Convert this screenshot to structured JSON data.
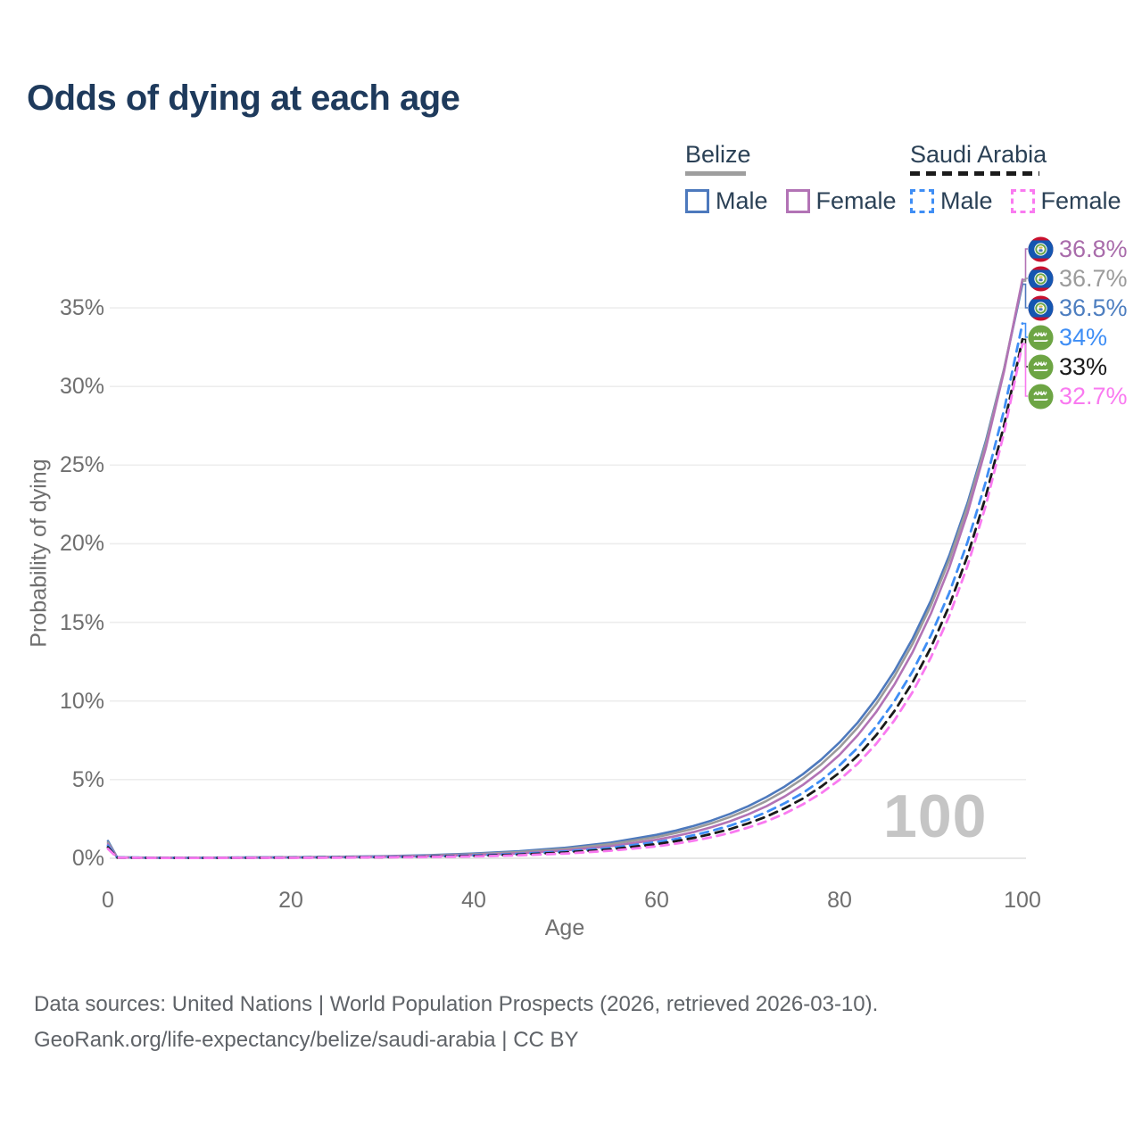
{
  "title": "Odds of dying at each age",
  "legend": {
    "groups": [
      {
        "name": "Belize",
        "line_style": "solid",
        "items": [
          {
            "label": "Male",
            "color": "#4d79bd"
          },
          {
            "label": "Female",
            "color": "#b273b5"
          }
        ]
      },
      {
        "name": "Saudi Arabia",
        "line_style": "dashed",
        "items": [
          {
            "label": "Male",
            "color": "#3f8ef5"
          },
          {
            "label": "Female",
            "color": "#f97af0"
          }
        ]
      }
    ]
  },
  "watermark": "100",
  "footer": {
    "line1": "Data sources: United Nations | World Population Prospects (2026, retrieved 2026-03-10).",
    "line2": "GeoRank.org/life-expectancy/belize/saudi-arabia | CC BY"
  },
  "chart_data": {
    "type": "line",
    "title": "Odds of dying at each age",
    "xlabel": "Age",
    "ylabel": "Probability of dying",
    "xlim": [
      0,
      100
    ],
    "ylim": [
      0,
      38
    ],
    "grid": "horizontal",
    "xticks": [
      {
        "v": 0,
        "label": "0"
      },
      {
        "v": 20,
        "label": "20"
      },
      {
        "v": 40,
        "label": "40"
      },
      {
        "v": 60,
        "label": "60"
      },
      {
        "v": 80,
        "label": "80"
      },
      {
        "v": 100,
        "label": "100"
      }
    ],
    "yticks": [
      {
        "v": 0,
        "label": "0%"
      },
      {
        "v": 5,
        "label": "5%"
      },
      {
        "v": 10,
        "label": "10%"
      },
      {
        "v": 15,
        "label": "15%"
      },
      {
        "v": 20,
        "label": "20%"
      },
      {
        "v": 25,
        "label": "25%"
      },
      {
        "v": 30,
        "label": "30%"
      },
      {
        "v": 35,
        "label": "35%"
      }
    ],
    "x": [
      0,
      1,
      5,
      10,
      15,
      20,
      25,
      30,
      35,
      40,
      45,
      50,
      55,
      60,
      62,
      64,
      66,
      68,
      70,
      72,
      74,
      76,
      78,
      80,
      82,
      84,
      86,
      88,
      90,
      92,
      94,
      96,
      98,
      100
    ],
    "series": [
      {
        "name": "Belize Male",
        "country": "Belize",
        "sex": "Male",
        "dash": "solid",
        "color": "#4d79bd",
        "values": [
          1.1,
          0.06,
          0.04,
          0.04,
          0.05,
          0.07,
          0.09,
          0.13,
          0.2,
          0.3,
          0.45,
          0.67,
          1.0,
          1.49,
          1.75,
          2.05,
          2.4,
          2.82,
          3.31,
          3.89,
          4.56,
          5.35,
          6.28,
          7.37,
          8.64,
          10.15,
          11.91,
          13.98,
          16.4,
          19.26,
          22.6,
          26.53,
          31.13,
          36.5
        ]
      },
      {
        "name": "Belize Both sexes",
        "country": "Belize",
        "sex": "Both",
        "dash": "solid",
        "color": "#9b9b9b",
        "values": [
          1.0,
          0.05,
          0.03,
          0.03,
          0.04,
          0.06,
          0.08,
          0.11,
          0.17,
          0.26,
          0.39,
          0.59,
          0.9,
          1.35,
          1.6,
          1.88,
          2.22,
          2.62,
          3.09,
          3.64,
          4.3,
          5.07,
          5.98,
          7.05,
          8.33,
          9.81,
          11.57,
          13.65,
          16.09,
          18.97,
          22.37,
          26.38,
          31.12,
          36.7
        ]
      },
      {
        "name": "Belize Female",
        "country": "Belize",
        "sex": "Female",
        "dash": "solid",
        "color": "#b273b5",
        "values": [
          0.9,
          0.05,
          0.03,
          0.03,
          0.04,
          0.05,
          0.07,
          0.1,
          0.15,
          0.21,
          0.32,
          0.5,
          0.77,
          1.18,
          1.4,
          1.66,
          1.98,
          2.35,
          2.79,
          3.31,
          3.93,
          4.67,
          5.55,
          6.58,
          7.83,
          9.3,
          11.05,
          13.12,
          15.57,
          18.49,
          21.96,
          26.09,
          30.99,
          36.8
        ]
      },
      {
        "name": "Saudi Arabia Male",
        "country": "Saudi Arabia",
        "sex": "Male",
        "dash": "dashed",
        "color": "#3f8ef5",
        "values": [
          0.8,
          0.05,
          0.03,
          0.03,
          0.04,
          0.05,
          0.06,
          0.08,
          0.12,
          0.18,
          0.28,
          0.43,
          0.66,
          1.03,
          1.22,
          1.46,
          1.74,
          2.07,
          2.46,
          2.93,
          3.5,
          4.16,
          4.96,
          5.91,
          7.04,
          8.38,
          9.99,
          11.9,
          14.19,
          16.88,
          20.11,
          23.96,
          28.52,
          34.0
        ]
      },
      {
        "name": "Saudi Arabia Both sexes",
        "country": "Saudi Arabia",
        "sex": "Both",
        "dash": "dashed",
        "color": "#1a1a1a",
        "values": [
          0.7,
          0.04,
          0.02,
          0.02,
          0.03,
          0.04,
          0.05,
          0.07,
          0.1,
          0.15,
          0.23,
          0.37,
          0.57,
          0.9,
          1.08,
          1.29,
          1.55,
          1.85,
          2.22,
          2.65,
          3.18,
          3.8,
          4.56,
          5.45,
          6.53,
          7.82,
          9.36,
          11.2,
          13.41,
          16.06,
          19.24,
          23.02,
          27.56,
          33.0
        ]
      },
      {
        "name": "Saudi Arabia Female",
        "country": "Saudi Arabia",
        "sex": "Female",
        "dash": "dashed",
        "color": "#f97af0",
        "values": [
          0.6,
          0.04,
          0.02,
          0.02,
          0.03,
          0.03,
          0.04,
          0.06,
          0.08,
          0.12,
          0.19,
          0.3,
          0.48,
          0.76,
          0.92,
          1.11,
          1.34,
          1.61,
          1.95,
          2.35,
          2.84,
          3.43,
          4.14,
          4.99,
          6.02,
          7.27,
          8.77,
          10.58,
          12.78,
          15.41,
          18.6,
          22.44,
          27.08,
          32.7
        ]
      }
    ],
    "end_labels": [
      {
        "text": "36.8%",
        "value": 36.8,
        "series_index": 2,
        "series": "Belize Female",
        "color": "#a96cab",
        "flag": "belize"
      },
      {
        "text": "36.7%",
        "value": 36.7,
        "series_index": 1,
        "series": "Belize Both sexes",
        "color": "#9b9b9b",
        "flag": "belize"
      },
      {
        "text": "36.5%",
        "value": 36.5,
        "series_index": 0,
        "series": "Belize Male",
        "color": "#4d7ec0",
        "flag": "belize"
      },
      {
        "text": "34%",
        "value": 34.0,
        "series_index": 3,
        "series": "Saudi Arabia Male",
        "color": "#3f8ef5",
        "flag": "saudi"
      },
      {
        "text": "33%",
        "value": 33.0,
        "series_index": 4,
        "series": "Saudi Arabia Both sexes",
        "color": "#1a1a1a",
        "flag": "saudi"
      },
      {
        "text": "32.7%",
        "value": 32.7,
        "series_index": 5,
        "series": "Saudi Arabia Female",
        "color": "#f97af0",
        "flag": "saudi"
      }
    ],
    "annotations": [
      {
        "text": "100",
        "role": "age-watermark"
      }
    ]
  }
}
